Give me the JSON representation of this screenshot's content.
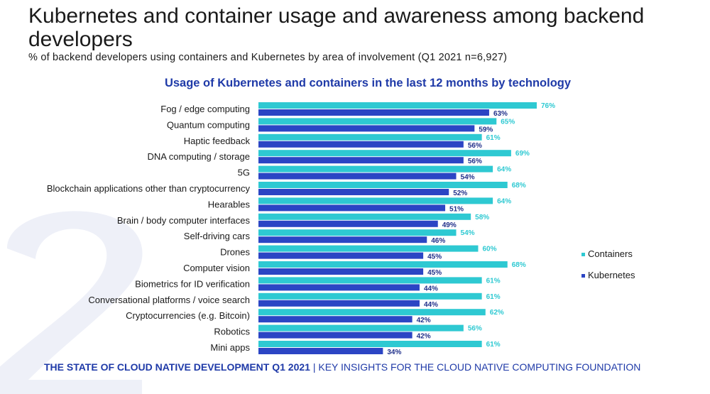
{
  "header": {
    "title": "Kubernetes and container usage and awareness among backend developers",
    "subtitle": "% of backend developers using containers and Kubernetes by area of involvement (Q1 2021 n=6,927)"
  },
  "footer": {
    "left": "THE STATE OF CLOUD NATIVE DEVELOPMENT Q1 2021",
    "separator": " | ",
    "right": "KEY INSIGHTS  FOR THE CLOUD NATIVE COMPUTING FOUNDATION"
  },
  "colors": {
    "containers": "#2ec9d2",
    "kubernetes": "#2b45c4",
    "containers_label": "#2ec9d2",
    "kubernetes_label": "#1f2f8a",
    "background_digit": "#eef0f8"
  },
  "chart_data": {
    "type": "bar",
    "orientation": "horizontal",
    "title": "Usage of Kubernetes and containers in the last 12 months by technology",
    "xlabel": "",
    "ylabel": "",
    "xlim": [
      0,
      76
    ],
    "value_suffix": "%",
    "legend_position": "right",
    "grid": false,
    "categories": [
      "Fog / edge computing",
      "Quantum computing",
      "Haptic feedback",
      "DNA computing / storage",
      "5G",
      "Blockchain applications other than cryptocurrency",
      "Hearables",
      "Brain / body computer interfaces",
      "Self-driving cars",
      "Drones",
      "Computer vision",
      "Biometrics for ID verification",
      "Conversational platforms / voice search",
      "Cryptocurrencies (e.g. Bitcoin)",
      "Robotics",
      "Mini apps"
    ],
    "series": [
      {
        "name": "Containers",
        "values": [
          76,
          65,
          61,
          69,
          64,
          68,
          64,
          58,
          54,
          60,
          68,
          61,
          61,
          62,
          56,
          61
        ]
      },
      {
        "name": "Kubernetes",
        "values": [
          63,
          59,
          56,
          56,
          54,
          52,
          51,
          49,
          46,
          45,
          45,
          44,
          44,
          42,
          42,
          34
        ]
      }
    ]
  }
}
